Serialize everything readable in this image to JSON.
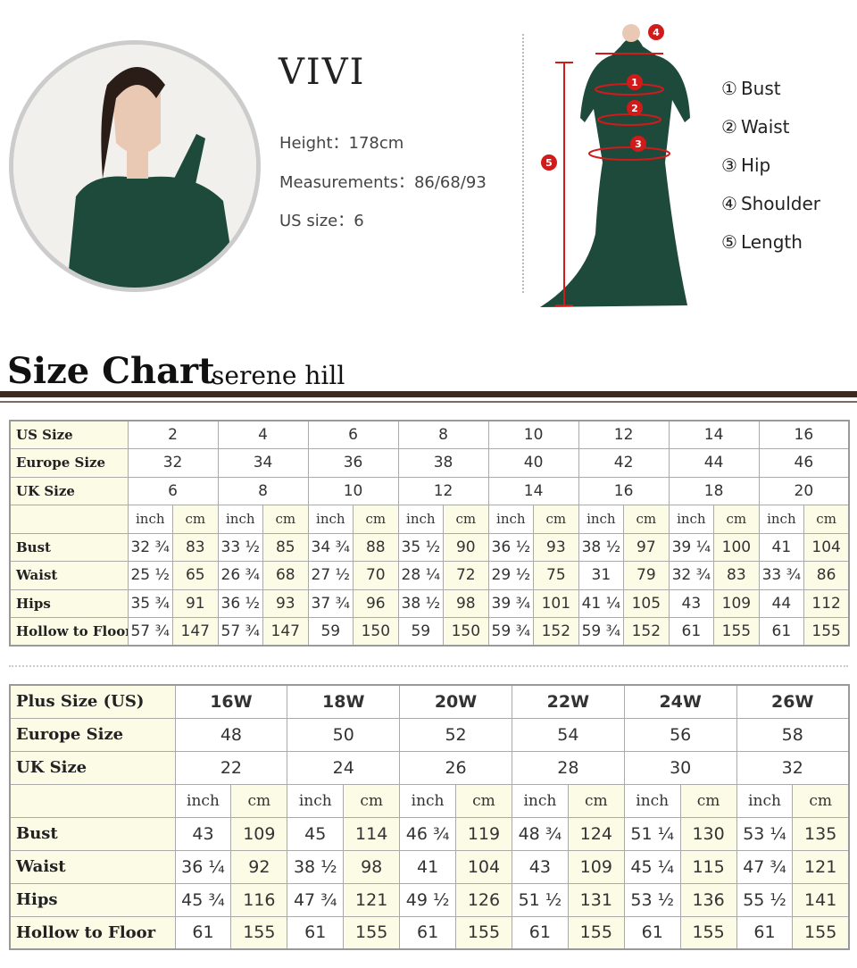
{
  "model": {
    "name": "VIVI",
    "height_label": "Height：",
    "height": "178cm",
    "measurements_label": "Measurements：",
    "measurements": "86/68/93",
    "us_size_label": "US size：",
    "us_size": "6"
  },
  "diagram": {
    "markers": [
      "1",
      "2",
      "3",
      "4",
      "5"
    ],
    "legend": [
      {
        "num": "①",
        "label": "Bust"
      },
      {
        "num": "②",
        "label": "Waist"
      },
      {
        "num": "③",
        "label": "Hip"
      },
      {
        "num": "④",
        "label": "Shoulder"
      },
      {
        "num": "⑤",
        "label": "Length"
      }
    ],
    "marker_color": "#d11a1a",
    "dress_color": "#1e4a3c"
  },
  "header": {
    "title": "Size Chart",
    "brand": "serene hill"
  },
  "table1": {
    "rows_header": [
      {
        "label": "US Size",
        "values": [
          "2",
          "4",
          "6",
          "8",
          "10",
          "12",
          "14",
          "16"
        ]
      },
      {
        "label": "Europe Size",
        "values": [
          "32",
          "34",
          "36",
          "38",
          "40",
          "42",
          "44",
          "46"
        ]
      },
      {
        "label": "UK Size",
        "values": [
          "6",
          "8",
          "10",
          "12",
          "14",
          "16",
          "18",
          "20"
        ]
      }
    ],
    "units": [
      "inch",
      "cm"
    ],
    "rows": [
      {
        "label": "Bust",
        "values": [
          "32 ¾",
          "83",
          "33 ½",
          "85",
          "34 ¾",
          "88",
          "35 ½",
          "90",
          "36 ½",
          "93",
          "38 ½",
          "97",
          "39 ¼",
          "100",
          "41",
          "104"
        ]
      },
      {
        "label": "Waist",
        "values": [
          "25 ½",
          "65",
          "26 ¾",
          "68",
          "27 ½",
          "70",
          "28 ¼",
          "72",
          "29 ½",
          "75",
          "31",
          "79",
          "32 ¾",
          "83",
          "33 ¾",
          "86"
        ]
      },
      {
        "label": "Hips",
        "values": [
          "35 ¾",
          "91",
          "36 ½",
          "93",
          "37 ¾",
          "96",
          "38 ½",
          "98",
          "39 ¾",
          "101",
          "41 ¼",
          "105",
          "43",
          "109",
          "44",
          "112"
        ]
      },
      {
        "label": "Hollow to Floor",
        "values": [
          "57 ¾",
          "147",
          "57 ¾",
          "147",
          "59",
          "150",
          "59",
          "150",
          "59 ¾",
          "152",
          "59 ¾",
          "152",
          "61",
          "155",
          "61",
          "155"
        ]
      }
    ]
  },
  "table2": {
    "rows_header": [
      {
        "label": "Plus Size (US)",
        "values": [
          "16W",
          "18W",
          "20W",
          "22W",
          "24W",
          "26W"
        ]
      },
      {
        "label": "Europe Size",
        "values": [
          "48",
          "50",
          "52",
          "54",
          "56",
          "58"
        ]
      },
      {
        "label": "UK Size",
        "values": [
          "22",
          "24",
          "26",
          "28",
          "30",
          "32"
        ]
      }
    ],
    "units": [
      "inch",
      "cm"
    ],
    "rows": [
      {
        "label": "Bust",
        "values": [
          "43",
          "109",
          "45",
          "114",
          "46 ¾",
          "119",
          "48 ¾",
          "124",
          "51 ¼",
          "130",
          "53 ¼",
          "135"
        ]
      },
      {
        "label": "Waist",
        "values": [
          "36 ¼",
          "92",
          "38 ½",
          "98",
          "41",
          "104",
          "43",
          "109",
          "45 ¼",
          "115",
          "47 ¾",
          "121"
        ]
      },
      {
        "label": "Hips",
        "values": [
          "45 ¾",
          "116",
          "47 ¾",
          "121",
          "49 ½",
          "126",
          "51 ½",
          "131",
          "53 ½",
          "136",
          "55 ½",
          "141"
        ]
      },
      {
        "label": "Hollow to Floor",
        "values": [
          "61",
          "155",
          "61",
          "155",
          "61",
          "155",
          "61",
          "155",
          "61",
          "155",
          "61",
          "155"
        ]
      }
    ]
  }
}
